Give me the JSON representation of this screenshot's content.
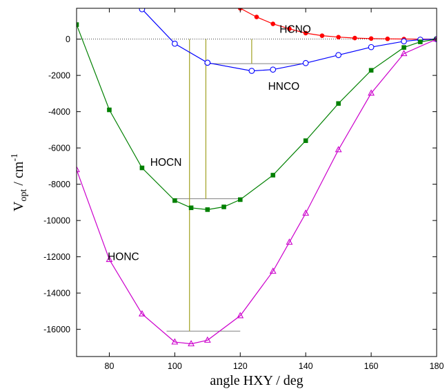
{
  "chart_data": {
    "type": "line",
    "title": "",
    "xlabel": "angle HXY / deg",
    "ylabel": {
      "base": "V",
      "sub": "opt",
      "unit": " / cm",
      "sup": "-1"
    },
    "xlim": [
      70,
      180
    ],
    "ylim": [
      -17500,
      1700
    ],
    "xticks": [
      80,
      100,
      120,
      140,
      160,
      180
    ],
    "yticks": [
      0,
      -2000,
      -4000,
      -6000,
      -8000,
      -10000,
      -12000,
      -14000,
      -16000
    ],
    "zero_line": true,
    "grid": false,
    "legend": "none",
    "series": [
      {
        "name": "HCNO",
        "color": "#ff0000",
        "marker": "filled-circle",
        "x": [
          120,
          125,
          130,
          135,
          140,
          145,
          150,
          155,
          160,
          165,
          170,
          175,
          180
        ],
        "y": [
          1700,
          1220,
          840,
          570,
          330,
          190,
          110,
          60,
          30,
          15,
          5,
          2,
          0
        ]
      },
      {
        "name": "HNCO",
        "color": "#0000ff",
        "marker": "open-circle",
        "x": [
          90,
          100,
          110,
          123.5,
          130,
          140,
          150,
          160,
          170,
          175,
          180
        ],
        "y": [
          1650,
          -250,
          -1300,
          -1750,
          -1680,
          -1320,
          -880,
          -440,
          -120,
          -30,
          0
        ]
      },
      {
        "name": "HOCN",
        "color": "#008000",
        "marker": "filled-square",
        "x": [
          70,
          80,
          90,
          100,
          105,
          110,
          115,
          120,
          130,
          140,
          150,
          160,
          170,
          175,
          180
        ],
        "y": [
          800,
          -3900,
          -7100,
          -8900,
          -9300,
          -9400,
          -9250,
          -8850,
          -7500,
          -5600,
          -3550,
          -1720,
          -460,
          -150,
          0
        ]
      },
      {
        "name": "HONC",
        "color": "#cc00cc",
        "marker": "open-triangle",
        "x": [
          70,
          80,
          90,
          100,
          105,
          110,
          120,
          130,
          135,
          140,
          150,
          160,
          170,
          180
        ],
        "y": [
          -7200,
          -12150,
          -15150,
          -16700,
          -16800,
          -16600,
          -15250,
          -12800,
          -11200,
          -9600,
          -6100,
          -2980,
          -800,
          0
        ]
      }
    ],
    "zero_point_levels": [
      {
        "series": "HNCO",
        "x_from": 109,
        "x_to": 138.5,
        "y": -1350
      },
      {
        "series": "HOCN",
        "x_from": 100,
        "x_to": 119.5,
        "y": -8800
      },
      {
        "series": "HONC",
        "x_from": 97.5,
        "x_to": 120,
        "y": -16100
      }
    ],
    "barrier_lines": [
      {
        "x": 104.5,
        "y_top": 0,
        "y_bottom": -16100
      },
      {
        "x": 109.5,
        "y_top": 0,
        "y_bottom": -8800
      },
      {
        "x": 123.5,
        "y_top": 0,
        "y_bottom": -1350
      }
    ],
    "colors": {
      "level": "#808080",
      "barrier": "#a0a020",
      "zero": "#000000"
    },
    "series_labels": [
      {
        "series": "HCNO",
        "text": "HCNO",
        "at": [
          132,
          530
        ]
      },
      {
        "series": "HNCO",
        "text": "HNCO",
        "at": [
          128.5,
          -2600
        ]
      },
      {
        "series": "HOCN",
        "text": "HOCN",
        "at": [
          92.5,
          -6800
        ]
      },
      {
        "series": "HONC",
        "text": "HONC",
        "at": [
          79.5,
          -12000
        ]
      }
    ]
  }
}
